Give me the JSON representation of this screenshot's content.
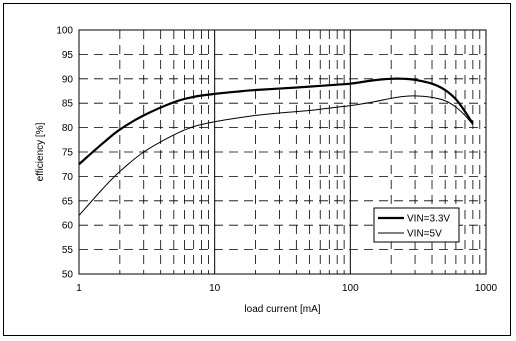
{
  "chart_data": {
    "type": "line",
    "title": "",
    "xlabel": "load current [mA]",
    "ylabel": "efficiency [%]",
    "x_scale": "log",
    "xlim": [
      1,
      1000
    ],
    "ylim": [
      50,
      100
    ],
    "x_tick_labels": [
      "1",
      "10",
      "100",
      "1000"
    ],
    "x_tick_values": [
      1,
      10,
      100,
      1000
    ],
    "y_tick_values": [
      50,
      55,
      60,
      65,
      70,
      75,
      80,
      85,
      90,
      95,
      100
    ],
    "grid": true,
    "legend_position": "right",
    "series": [
      {
        "name": "VIN=3.3V",
        "style": "thick",
        "color": "#000000",
        "points": [
          [
            1,
            72.5
          ],
          [
            1.5,
            76.8
          ],
          [
            2,
            79.6
          ],
          [
            3,
            82.5
          ],
          [
            5,
            85.2
          ],
          [
            7,
            86.3
          ],
          [
            10,
            86.9
          ],
          [
            15,
            87.4
          ],
          [
            20,
            87.7
          ],
          [
            30,
            88.0
          ],
          [
            50,
            88.4
          ],
          [
            80,
            88.8
          ],
          [
            100,
            89.0
          ],
          [
            150,
            89.7
          ],
          [
            200,
            90.0
          ],
          [
            250,
            90.0
          ],
          [
            300,
            89.8
          ],
          [
            400,
            89.0
          ],
          [
            500,
            87.7
          ],
          [
            600,
            85.8
          ],
          [
            700,
            83.3
          ],
          [
            800,
            80.8
          ]
        ]
      },
      {
        "name": "VIN=5V",
        "style": "thin",
        "color": "#000000",
        "points": [
          [
            1,
            62.0
          ],
          [
            1.5,
            67.5
          ],
          [
            2,
            71.0
          ],
          [
            3,
            75.0
          ],
          [
            5,
            78.5
          ],
          [
            7,
            80.2
          ],
          [
            10,
            81.2
          ],
          [
            15,
            82.0
          ],
          [
            20,
            82.5
          ],
          [
            30,
            83.0
          ],
          [
            50,
            83.5
          ],
          [
            80,
            84.2
          ],
          [
            100,
            84.5
          ],
          [
            150,
            85.3
          ],
          [
            200,
            86.0
          ],
          [
            250,
            86.4
          ],
          [
            300,
            86.5
          ],
          [
            400,
            86.2
          ],
          [
            500,
            85.5
          ],
          [
            600,
            84.2
          ],
          [
            700,
            82.5
          ],
          [
            800,
            80.6
          ]
        ]
      }
    ]
  }
}
